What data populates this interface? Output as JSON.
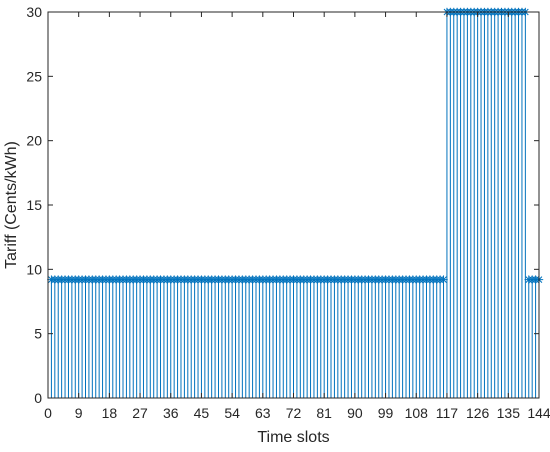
{
  "chart_data": {
    "type": "stem",
    "xlabel": "Time slots",
    "ylabel": "Tariff (Cents/kWh)",
    "xlim": [
      0,
      144
    ],
    "ylim": [
      0,
      30
    ],
    "xticks": [
      0,
      9,
      18,
      27,
      36,
      45,
      54,
      63,
      72,
      81,
      90,
      99,
      108,
      117,
      126,
      135,
      144
    ],
    "yticks": [
      0,
      5,
      10,
      15,
      20,
      25,
      30
    ],
    "marker": "asterisk",
    "color": "#0072BD",
    "series": [
      {
        "segments": [
          {
            "x_start": 1,
            "x_end": 116,
            "value": 9.2
          },
          {
            "x_start": 117,
            "x_end": 140,
            "value": 30
          },
          {
            "x_start": 141,
            "x_end": 144,
            "value": 9.2
          }
        ]
      }
    ],
    "grid": false
  }
}
